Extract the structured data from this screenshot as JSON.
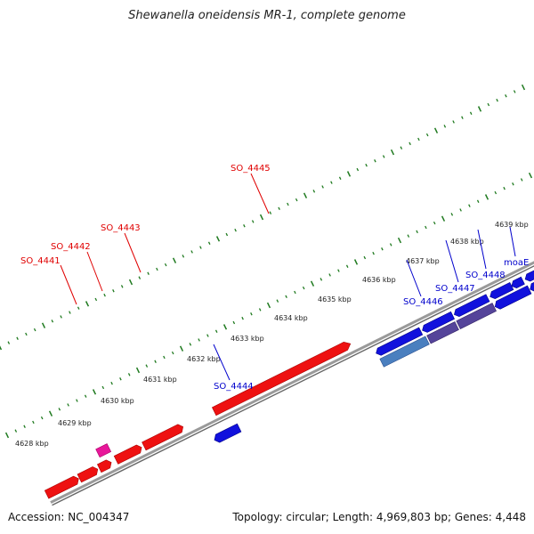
{
  "title": "Shewanella oneidensis MR-1, complete genome",
  "footer": {
    "accession": "Accession: NC_004347",
    "topology": "Topology: circular; Length: 4,969,803 bp; Genes: 4,448"
  },
  "colors": {
    "forward_gene": "#ee1111",
    "reverse_gene": "#1111dd",
    "reverse_gene_dark": "#55449a",
    "reverse_gene_light": "#4a7fbf",
    "pseudo_gene": "#e8179a",
    "backbone": "#888888",
    "tick": "#1f7a1f"
  },
  "ticks": [
    {
      "label": "4628 kbp"
    },
    {
      "label": "4629 kbp"
    },
    {
      "label": "4630 kbp"
    },
    {
      "label": "4631 kbp"
    },
    {
      "label": "4632 kbp"
    },
    {
      "label": "4633 kbp"
    },
    {
      "label": "4634 kbp"
    },
    {
      "label": "4635 kbp"
    },
    {
      "label": "4636 kbp"
    },
    {
      "label": "4637 kbp"
    },
    {
      "label": "4638 kbp"
    },
    {
      "label": "4639 kbp"
    }
  ],
  "gene_labels": {
    "so_4441": "SO_4441",
    "so_4442": "SO_4442",
    "so_4443": "SO_4443",
    "so_4445": "SO_4445",
    "so_4444": "SO_4444",
    "so_4446": "SO_4446",
    "so_4447": "SO_4447",
    "so_4448": "SO_4448",
    "moae": "moaE"
  }
}
